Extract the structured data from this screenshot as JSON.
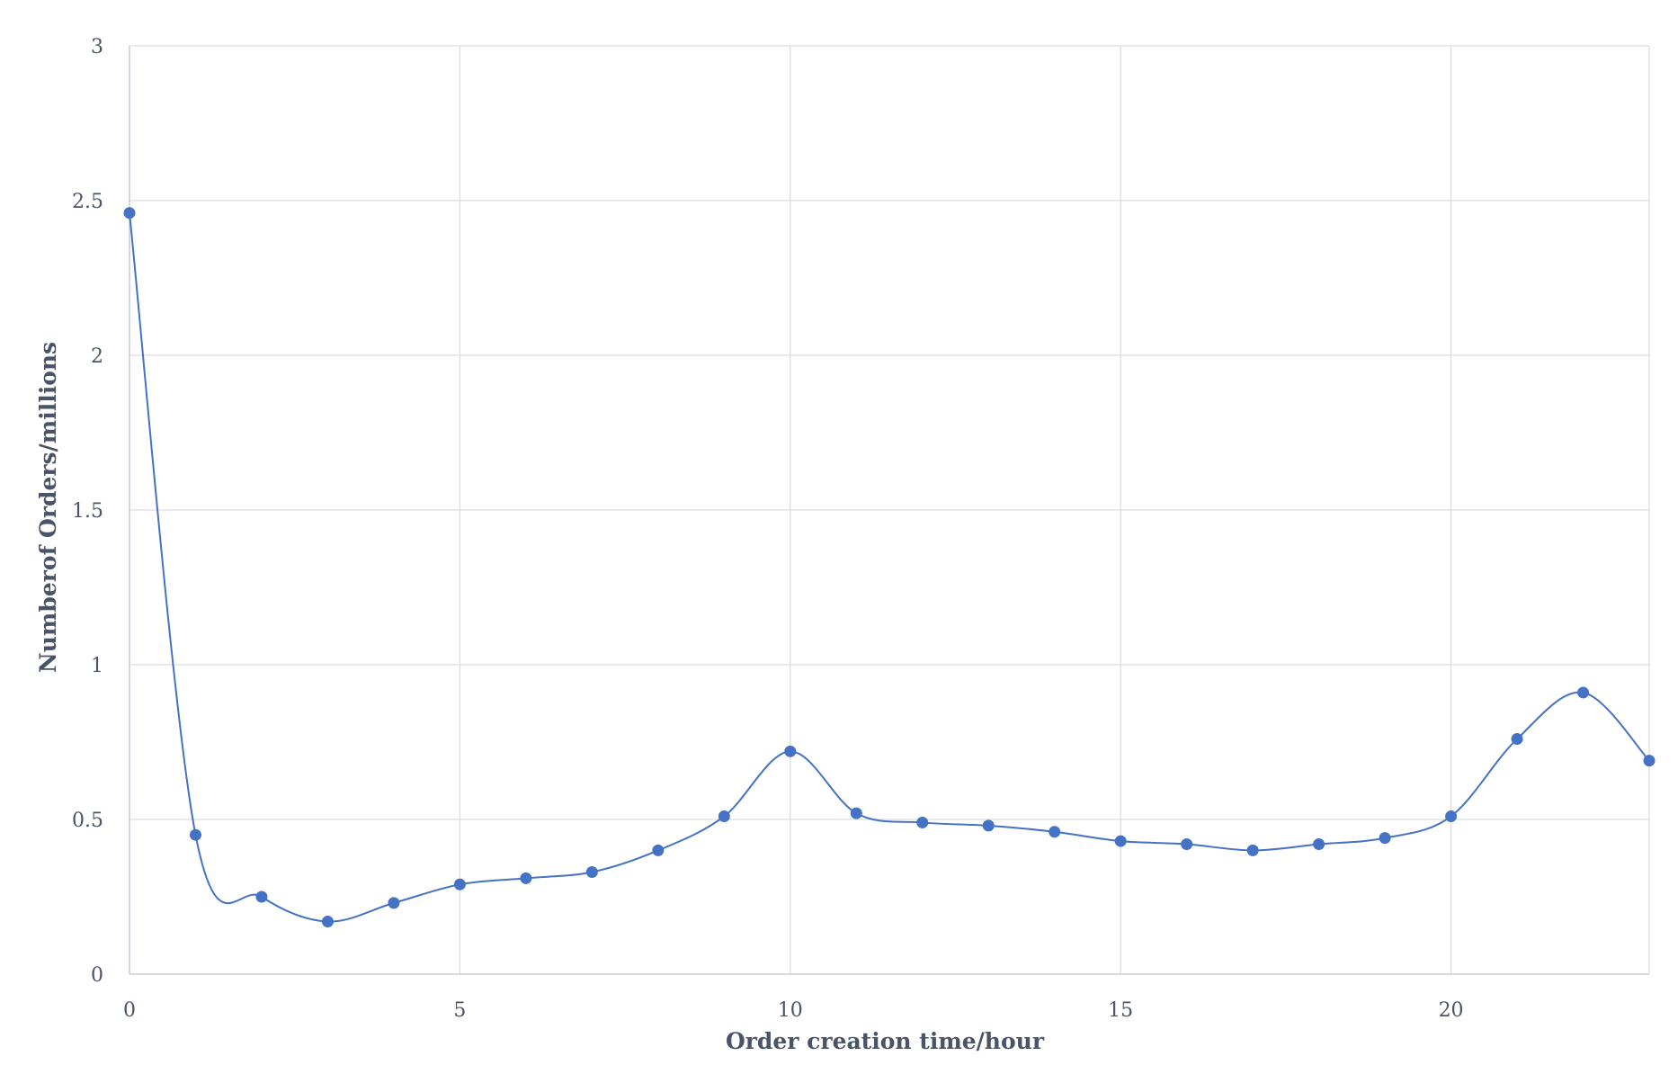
{
  "chart_data": {
    "type": "line",
    "title": "",
    "xlabel": "Order creation time/hour",
    "ylabel": "Numberof Orders/millions",
    "xlim": [
      0,
      23
    ],
    "ylim": [
      0,
      3
    ],
    "xticks": [
      "0",
      "5",
      "10",
      "15",
      "20"
    ],
    "xtick_values": [
      0,
      5,
      10,
      15,
      20
    ],
    "yticks": [
      "0",
      "0.5",
      "1",
      "1.5",
      "2",
      "2.5",
      "3"
    ],
    "ytick_values": [
      0,
      0.5,
      1,
      1.5,
      2,
      2.5,
      3
    ],
    "grid": true,
    "smooth": true,
    "markers": true,
    "series": [
      {
        "color": "#4472c4",
        "x": [
          0,
          1,
          2,
          3,
          4,
          5,
          6,
          7,
          8,
          9,
          10,
          11,
          12,
          13,
          14,
          15,
          16,
          17,
          18,
          19,
          20,
          21,
          22,
          23
        ],
        "y": [
          2.46,
          0.45,
          0.25,
          0.17,
          0.23,
          0.29,
          0.31,
          0.33,
          0.4,
          0.51,
          0.72,
          0.52,
          0.49,
          0.48,
          0.46,
          0.43,
          0.42,
          0.4,
          0.42,
          0.44,
          0.51,
          0.76,
          0.91,
          0.69
        ]
      }
    ],
    "colors": {
      "line": "#4472c4",
      "grid": "#d9dde3",
      "text": "#4a5468"
    }
  }
}
